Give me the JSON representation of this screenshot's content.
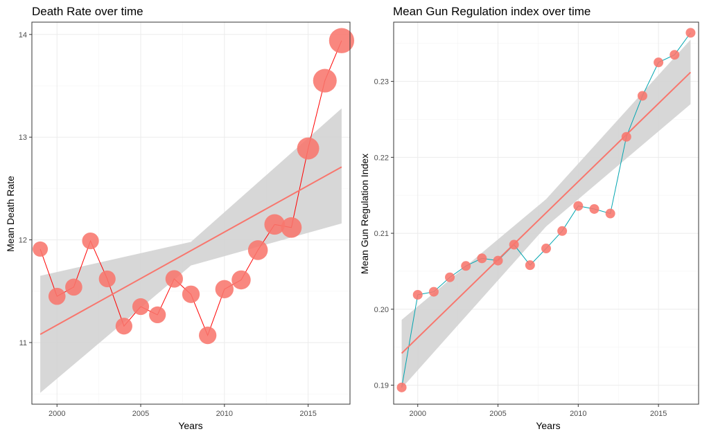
{
  "colors": {
    "point": "#F8766D",
    "trend": "#F8766D",
    "band": "#D3D3D3",
    "left_line": "#FF0000",
    "right_line": "#00A5B0",
    "grid": "#EBEBEB",
    "frame": "#333333"
  },
  "chart_data": [
    {
      "type": "line",
      "title": "Death Rate over time",
      "xlabel": "Years",
      "ylabel": "Mean Death Rate",
      "xlim": [
        1998.5,
        2017.5
      ],
      "ylim": [
        10.4,
        14.12
      ],
      "xticks": [
        2000,
        2005,
        2010,
        2015
      ],
      "yticks": [
        11,
        12,
        13,
        14
      ],
      "grid": true,
      "legend": "none",
      "x": [
        1999,
        2000,
        2001,
        2002,
        2003,
        2004,
        2005,
        2006,
        2007,
        2008,
        2009,
        2010,
        2011,
        2012,
        2013,
        2014,
        2015,
        2016,
        2017
      ],
      "series": [
        {
          "values": [
            11.91,
            11.45,
            11.54,
            11.99,
            11.62,
            11.16,
            11.35,
            11.27,
            11.62,
            11.47,
            11.07,
            11.52,
            11.61,
            11.9,
            12.15,
            12.12,
            12.89,
            13.55,
            13.94
          ],
          "point_size": [
            1.0,
            1.12,
            1.12,
            1.1,
            1.1,
            1.1,
            1.1,
            1.1,
            1.15,
            1.15,
            1.15,
            1.2,
            1.25,
            1.3,
            1.35,
            1.35,
            1.45,
            1.55,
            1.65
          ]
        }
      ],
      "trend": {
        "x": [
          1999,
          2017
        ],
        "y": [
          11.08,
          12.71
        ]
      },
      "confidence_band": {
        "x": [
          1999,
          2008,
          2017
        ],
        "lower": [
          10.51,
          11.75,
          12.16
        ],
        "upper": [
          11.65,
          11.98,
          13.28
        ]
      }
    },
    {
      "type": "line",
      "title": "Mean Gun Regulation index over time",
      "xlabel": "Years",
      "ylabel": "Mean Gun Regulation Index",
      "xlim": [
        1998.5,
        2017.5
      ],
      "ylim": [
        0.1875,
        0.2378
      ],
      "xticks": [
        2000,
        2005,
        2010,
        2015
      ],
      "yticks": [
        0.19,
        0.2,
        0.21,
        0.22,
        0.23
      ],
      "ytick_labels": [
        "0.19",
        "0.20",
        "0.21",
        "0.22",
        "0.23"
      ],
      "grid": true,
      "legend": "none",
      "x": [
        1999,
        2000,
        2001,
        2002,
        2003,
        2004,
        2005,
        2006,
        2007,
        2008,
        2009,
        2010,
        2011,
        2012,
        2013,
        2014,
        2015,
        2016,
        2017
      ],
      "series": [
        {
          "values": [
            0.1897,
            0.2019,
            0.2023,
            0.2042,
            0.2057,
            0.2067,
            0.2064,
            0.2085,
            0.2058,
            0.208,
            0.2103,
            0.2136,
            0.2132,
            0.2126,
            0.2227,
            0.2281,
            0.2325,
            0.2335,
            0.2364
          ]
        }
      ],
      "trend": {
        "x": [
          1999,
          2017
        ],
        "y": [
          0.1942,
          0.2312
        ]
      },
      "confidence_band": {
        "x": [
          1999,
          2008,
          2017
        ],
        "lower": [
          0.1896,
          0.2109,
          0.227
        ],
        "upper": [
          0.1986,
          0.2145,
          0.2355
        ]
      }
    }
  ]
}
